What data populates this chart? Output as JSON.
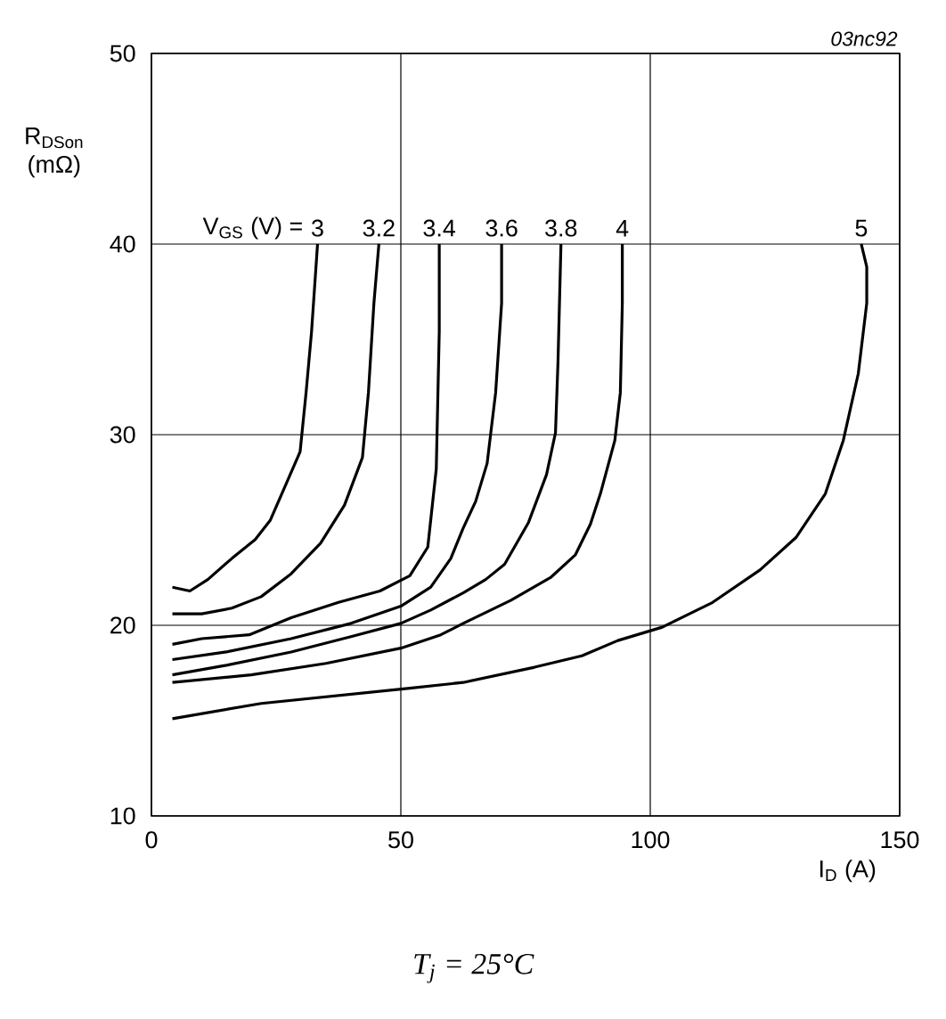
{
  "chart_data": {
    "type": "line",
    "xlabel": "I$_{D}$ (A)",
    "ylabel": "R$_{DSon}$ (mΩ)",
    "legend_title": "V$_{GS}$ (V) =",
    "annotations": [
      "03nc92",
      "T$_{j}$ = 25°C"
    ],
    "xlim": [
      0,
      150
    ],
    "ylim": [
      10,
      50
    ],
    "xticks": [
      0,
      50,
      100,
      150
    ],
    "yticks": [
      10,
      20,
      30,
      40,
      50
    ],
    "grid": true,
    "marker": "none",
    "line_style": "solid",
    "series": [
      {
        "name": "3",
        "color": "#000000",
        "x": [
          4.2,
          7.7,
          11.3,
          16.1,
          20.8,
          23.8,
          26.8,
          29.8,
          31.0,
          32.1,
          33.3
        ],
        "values": [
          22.0,
          21.8,
          22.4,
          23.5,
          24.5,
          25.5,
          27.3,
          29.1,
          32.2,
          35.4,
          40.0
        ]
      },
      {
        "name": "3.2",
        "color": "#000000",
        "x": [
          4.2,
          10.1,
          16.1,
          22.0,
          28.0,
          33.9,
          38.7,
          42.3,
          43.5,
          44.6,
          45.6
        ],
        "values": [
          20.6,
          20.6,
          20.9,
          21.5,
          22.7,
          24.3,
          26.3,
          28.8,
          32.2,
          36.9,
          40.0
        ]
      },
      {
        "name": "3.4",
        "color": "#000000",
        "x": [
          4.2,
          10.1,
          19.6,
          28.0,
          37.5,
          45.8,
          51.8,
          55.4,
          57.1,
          57.7,
          57.7
        ],
        "values": [
          19.0,
          19.3,
          19.5,
          20.4,
          21.2,
          21.8,
          22.6,
          24.1,
          28.2,
          35.4,
          40.0
        ]
      },
      {
        "name": "3.6",
        "color": "#000000",
        "x": [
          4.2,
          15,
          28,
          40,
          50,
          56,
          60,
          62.5,
          65,
          67.3,
          69,
          70.2,
          70.2
        ],
        "values": [
          18.2,
          18.6,
          19.3,
          20.1,
          21.0,
          22.0,
          23.5,
          25.1,
          26.5,
          28.5,
          32.2,
          36.9,
          40.0
        ]
      },
      {
        "name": "3.8",
        "color": "#000000",
        "x": [
          4.2,
          15,
          28,
          40,
          50,
          56,
          62.5,
          67,
          70.8,
          75.6,
          79.2,
          81,
          81.5,
          82.1
        ],
        "values": [
          17.4,
          17.9,
          18.6,
          19.4,
          20.1,
          20.8,
          21.7,
          22.4,
          23.2,
          25.4,
          27.9,
          30.1,
          33.8,
          40.0
        ]
      },
      {
        "name": "4",
        "color": "#000000",
        "x": [
          4.2,
          20,
          35,
          50,
          58,
          62.5,
          72,
          80,
          85,
          88,
          90,
          92.9,
          94,
          94.4,
          94.4
        ],
        "values": [
          17.0,
          17.4,
          18.0,
          18.8,
          19.5,
          20.1,
          21.3,
          22.5,
          23.7,
          25.3,
          26.9,
          29.7,
          32.2,
          36.9,
          40.0
        ]
      },
      {
        "name": "5",
        "color": "#000000",
        "x": [
          4.2,
          22,
          51.8,
          62.5,
          76.8,
          86.3,
          93.5,
          102.4,
          112.5,
          122,
          129.2,
          135.1,
          138.7,
          141.7,
          143.4,
          143.4,
          142.3
        ],
        "values": [
          15.1,
          15.9,
          16.7,
          17.0,
          17.8,
          18.4,
          19.2,
          19.9,
          21.2,
          22.9,
          24.6,
          26.9,
          29.7,
          33.2,
          36.9,
          38.8,
          40.0
        ]
      }
    ]
  }
}
